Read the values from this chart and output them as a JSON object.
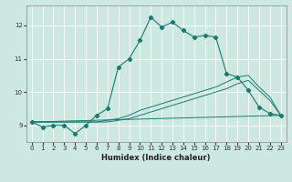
{
  "title": "",
  "xlabel": "Humidex (Indice chaleur)",
  "bg_color": "#cce8e0",
  "line_color": "#1a7a6e",
  "grid_color": "#ffffff",
  "xlim": [
    -0.5,
    23.5
  ],
  "ylim": [
    8.5,
    12.6
  ],
  "yticks": [
    9,
    10,
    11,
    12
  ],
  "xticks": [
    0,
    1,
    2,
    3,
    4,
    5,
    6,
    7,
    8,
    9,
    10,
    11,
    12,
    13,
    14,
    15,
    16,
    17,
    18,
    19,
    20,
    21,
    22,
    23
  ],
  "main_line": {
    "x": [
      0,
      1,
      2,
      3,
      4,
      5,
      6,
      7,
      8,
      9,
      10,
      11,
      12,
      13,
      14,
      15,
      16,
      17,
      18,
      19,
      20,
      21,
      22,
      23
    ],
    "y": [
      9.1,
      8.95,
      9.0,
      9.0,
      8.75,
      9.0,
      9.3,
      9.5,
      10.75,
      11.0,
      11.55,
      12.25,
      11.95,
      12.1,
      11.85,
      11.65,
      11.7,
      11.65,
      10.55,
      10.45,
      10.05,
      9.55,
      9.35,
      9.3
    ]
  },
  "smooth_lines": [
    {
      "x": [
        0,
        6,
        7,
        8,
        9,
        10,
        11,
        12,
        13,
        14,
        15,
        16,
        17,
        18,
        19,
        20,
        21,
        22,
        23
      ],
      "y": [
        9.1,
        9.1,
        9.15,
        9.2,
        9.3,
        9.45,
        9.55,
        9.65,
        9.75,
        9.85,
        9.95,
        10.05,
        10.15,
        10.3,
        10.45,
        10.5,
        10.15,
        9.85,
        9.3
      ]
    },
    {
      "x": [
        0,
        6,
        7,
        8,
        9,
        10,
        11,
        12,
        13,
        14,
        15,
        16,
        17,
        18,
        19,
        20,
        21,
        22,
        23
      ],
      "y": [
        9.1,
        9.1,
        9.1,
        9.15,
        9.2,
        9.3,
        9.4,
        9.5,
        9.6,
        9.7,
        9.8,
        9.9,
        10.0,
        10.1,
        10.25,
        10.35,
        10.05,
        9.75,
        9.3
      ]
    },
    {
      "x": [
        0,
        23
      ],
      "y": [
        9.1,
        9.3
      ]
    }
  ]
}
